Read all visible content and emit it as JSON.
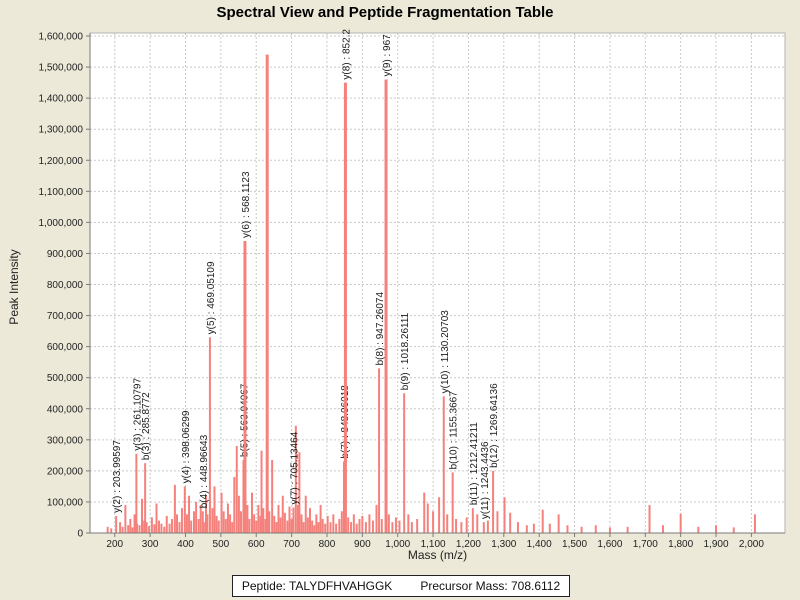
{
  "title": "Spectral View and Peptide Fragmentation Table",
  "footer": {
    "peptide_label": "Peptide: TALYDFHVAHGGK",
    "precursor_label": "Precursor Mass: 708.6112"
  },
  "chart_data": {
    "type": "bar",
    "title": "Spectral View and Peptide Fragmentation Table",
    "xlabel": "Mass (m/z)",
    "ylabel": "Peak Intensity",
    "xlim": [
      130,
      2095
    ],
    "ylim": [
      0,
      1600000
    ],
    "x_ticks": [
      200,
      300,
      400,
      500,
      600,
      700,
      800,
      900,
      1000,
      1100,
      1200,
      1300,
      1400,
      1500,
      1600,
      1700,
      1800,
      1900,
      2000
    ],
    "y_ticks": [
      0,
      100000,
      200000,
      300000,
      400000,
      500000,
      600000,
      700000,
      800000,
      900000,
      1000000,
      1100000,
      1200000,
      1300000,
      1400000,
      1500000,
      1600000
    ],
    "grid": true,
    "colors": {
      "peak": "#f5817c",
      "background": "#ece9d8",
      "plot_background": "#ffffff",
      "grid": "#c9c9c9",
      "axis": "#7a7a7a",
      "border": "#b3b3b3",
      "label_text": "#1a1a1a"
    },
    "labeled_peaks": [
      {
        "ion": "y(2)",
        "mz": 203.99597,
        "intensity": 55000,
        "label": "y(2) : 203.99597"
      },
      {
        "ion": "y(3)",
        "mz": 261.10797,
        "intensity": 255000,
        "label": "y(3) : 261.10797"
      },
      {
        "ion": "b(3)",
        "mz": 285.8772,
        "intensity": 225000,
        "label": "b(3) : 285.8772"
      },
      {
        "ion": "y(4)",
        "mz": 398.06299,
        "intensity": 150000,
        "label": "y(4) : 398.06299"
      },
      {
        "ion": "b(4)",
        "mz": 448.96643,
        "intensity": 70000,
        "label": "b(4) : 448.96643"
      },
      {
        "ion": "y(5)",
        "mz": 469.05109,
        "intensity": 630000,
        "label": "y(5) : 469.05109"
      },
      {
        "ion": "b(5)",
        "mz": 563.94067,
        "intensity": 235000,
        "label": "b(5) : 563.94067"
      },
      {
        "ion": "y(6)",
        "mz": 568.1123,
        "intensity": 940000,
        "label": "y(6) : 568.1123"
      },
      {
        "ion": "y(7)",
        "mz": 705.13464,
        "intensity": 82000,
        "label": "y(7) : 705.13464"
      },
      {
        "ion": "b(7)",
        "mz": 848.06018,
        "intensity": 230000,
        "label": "b(7) : 848.06018"
      },
      {
        "ion": "y(8)",
        "mz": 852.2,
        "intensity": 1450000,
        "label": "y(8) : 852.2"
      },
      {
        "ion": "b(8)",
        "mz": 947.26074,
        "intensity": 530000,
        "label": "b(8) : 947.26074"
      },
      {
        "ion": "y(9)",
        "mz": 967,
        "intensity": 1460000,
        "label": "y(9) : 967"
      },
      {
        "ion": "b(9)",
        "mz": 1018.26111,
        "intensity": 450000,
        "label": "b(9) : 1018.26111"
      },
      {
        "ion": "y(10)",
        "mz": 1130.20703,
        "intensity": 440000,
        "label": "y(10) : 1130.20703"
      },
      {
        "ion": "b(10)",
        "mz": 1155.3667,
        "intensity": 195000,
        "label": "b(10) : 1155.3667"
      },
      {
        "ion": "b(11)",
        "mz": 1212.41211,
        "intensity": 80000,
        "label": "b(11) : 1212.41211"
      },
      {
        "ion": "y(11)",
        "mz": 1243.4436,
        "intensity": 35000,
        "label": "y(11) : 1243.4436"
      },
      {
        "ion": "b(12)",
        "mz": 1269.64136,
        "intensity": 200000,
        "label": "b(12) : 1269.64136"
      }
    ],
    "unlabeled_peaks": [
      [
        180,
        20000
      ],
      [
        190,
        15000
      ],
      [
        215,
        35000
      ],
      [
        222,
        20000
      ],
      [
        230,
        90000
      ],
      [
        238,
        25000
      ],
      [
        244,
        45000
      ],
      [
        250,
        18000
      ],
      [
        256,
        60000
      ],
      [
        263,
        30000
      ],
      [
        270,
        25000
      ],
      [
        277,
        110000
      ],
      [
        283,
        40000
      ],
      [
        290,
        35000
      ],
      [
        297,
        22000
      ],
      [
        305,
        50000
      ],
      [
        312,
        28000
      ],
      [
        318,
        95000
      ],
      [
        325,
        40000
      ],
      [
        332,
        30000
      ],
      [
        340,
        20000
      ],
      [
        347,
        55000
      ],
      [
        355,
        30000
      ],
      [
        362,
        45000
      ],
      [
        370,
        155000
      ],
      [
        376,
        60000
      ],
      [
        383,
        35000
      ],
      [
        390,
        80000
      ],
      [
        404,
        60000
      ],
      [
        410,
        120000
      ],
      [
        416,
        40000
      ],
      [
        424,
        70000
      ],
      [
        430,
        100000
      ],
      [
        437,
        45000
      ],
      [
        443,
        90000
      ],
      [
        452,
        35000
      ],
      [
        458,
        120000
      ],
      [
        462,
        60000
      ],
      [
        476,
        80000
      ],
      [
        482,
        150000
      ],
      [
        488,
        55000
      ],
      [
        494,
        40000
      ],
      [
        502,
        130000
      ],
      [
        508,
        70000
      ],
      [
        514,
        45000
      ],
      [
        520,
        95000
      ],
      [
        526,
        60000
      ],
      [
        532,
        35000
      ],
      [
        538,
        180000
      ],
      [
        545,
        280000
      ],
      [
        551,
        120000
      ],
      [
        557,
        70000
      ],
      [
        575,
        90000
      ],
      [
        581,
        45000
      ],
      [
        588,
        130000
      ],
      [
        594,
        60000
      ],
      [
        600,
        40000
      ],
      [
        606,
        90000
      ],
      [
        612,
        55000
      ],
      [
        615,
        265000
      ],
      [
        620,
        80000
      ],
      [
        626,
        45000
      ],
      [
        631,
        1540000
      ],
      [
        637,
        70000
      ],
      [
        645,
        235000
      ],
      [
        651,
        55000
      ],
      [
        657,
        35000
      ],
      [
        663,
        90000
      ],
      [
        669,
        50000
      ],
      [
        675,
        120000
      ],
      [
        681,
        65000
      ],
      [
        688,
        40000
      ],
      [
        694,
        85000
      ],
      [
        700,
        45000
      ],
      [
        712,
        345000
      ],
      [
        718,
        90000
      ],
      [
        722,
        260000
      ],
      [
        728,
        60000
      ],
      [
        734,
        35000
      ],
      [
        740,
        120000
      ],
      [
        746,
        50000
      ],
      [
        752,
        80000
      ],
      [
        758,
        40000
      ],
      [
        764,
        25000
      ],
      [
        770,
        60000
      ],
      [
        776,
        35000
      ],
      [
        782,
        90000
      ],
      [
        788,
        45000
      ],
      [
        795,
        30000
      ],
      [
        802,
        55000
      ],
      [
        810,
        35000
      ],
      [
        818,
        60000
      ],
      [
        826,
        30000
      ],
      [
        835,
        45000
      ],
      [
        842,
        70000
      ],
      [
        860,
        50000
      ],
      [
        868,
        35000
      ],
      [
        876,
        60000
      ],
      [
        884,
        30000
      ],
      [
        892,
        45000
      ],
      [
        900,
        55000
      ],
      [
        910,
        35000
      ],
      [
        920,
        60000
      ],
      [
        930,
        40000
      ],
      [
        940,
        90000
      ],
      [
        955,
        45000
      ],
      [
        975,
        60000
      ],
      [
        985,
        35000
      ],
      [
        995,
        50000
      ],
      [
        1005,
        40000
      ],
      [
        1030,
        60000
      ],
      [
        1040,
        35000
      ],
      [
        1055,
        45000
      ],
      [
        1075,
        130000
      ],
      [
        1085,
        95000
      ],
      [
        1100,
        70000
      ],
      [
        1117,
        115000
      ],
      [
        1140,
        60000
      ],
      [
        1165,
        45000
      ],
      [
        1180,
        35000
      ],
      [
        1195,
        50000
      ],
      [
        1225,
        60000
      ],
      [
        1255,
        40000
      ],
      [
        1282,
        70000
      ],
      [
        1302,
        115000
      ],
      [
        1318,
        65000
      ],
      [
        1340,
        35000
      ],
      [
        1365,
        25000
      ],
      [
        1385,
        30000
      ],
      [
        1410,
        75000
      ],
      [
        1430,
        30000
      ],
      [
        1455,
        60000
      ],
      [
        1480,
        25000
      ],
      [
        1520,
        20000
      ],
      [
        1560,
        25000
      ],
      [
        1600,
        18000
      ],
      [
        1650,
        20000
      ],
      [
        1712,
        90000
      ],
      [
        1750,
        25000
      ],
      [
        1800,
        62000
      ],
      [
        1850,
        20000
      ],
      [
        1900,
        25000
      ],
      [
        1950,
        18000
      ],
      [
        2010,
        60000
      ]
    ]
  }
}
